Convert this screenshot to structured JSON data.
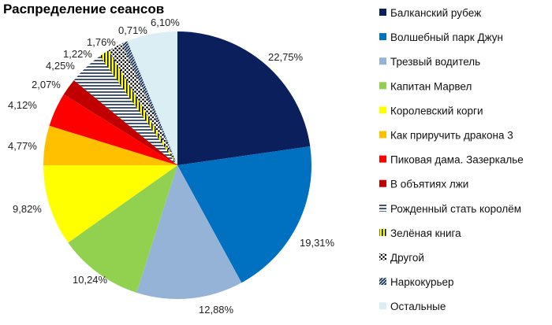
{
  "chart_data": {
    "type": "pie",
    "title": "Распределение сеансов",
    "legend_position": "right",
    "start": "top, clockwise",
    "slices": [
      {
        "name": "Балканский рубеж",
        "value": 22.75,
        "label": "22,75%",
        "color": "#0b1f5c",
        "pattern": "solid"
      },
      {
        "name": "Волшебный парк Джун",
        "value": 19.31,
        "label": "19,31%",
        "color": "#0070c0",
        "pattern": "solid"
      },
      {
        "name": "Трезвый водитель",
        "value": 12.88,
        "label": "12,88%",
        "color": "#95b3d7",
        "pattern": "solid"
      },
      {
        "name": "Капитан Марвел",
        "value": 10.24,
        "label": "10,24%",
        "color": "#92d050",
        "pattern": "solid"
      },
      {
        "name": "Королевский корги",
        "value": 9.82,
        "label": "9,82%",
        "color": "#ffff00",
        "pattern": "solid"
      },
      {
        "name": "Как приручить дракона 3",
        "value": 4.77,
        "label": "4,77%",
        "color": "#ffc000",
        "pattern": "solid"
      },
      {
        "name": "Пиковая дама. Зазеркалье",
        "value": 4.12,
        "label": "4,12%",
        "color": "#ff0000",
        "pattern": "solid"
      },
      {
        "name": "В объятиях лжи",
        "value": 2.07,
        "label": "2,07%",
        "color": "#c00000",
        "pattern": "solid"
      },
      {
        "name": "Рожденный стать королём",
        "value": 4.25,
        "label": "4,25%",
        "color": "#44546a",
        "pattern": "hlines"
      },
      {
        "name": "Зелёная книга",
        "value": 1.22,
        "label": "1,22%",
        "color": "#ffff00",
        "pattern": "vlines"
      },
      {
        "name": "Другой",
        "value": 1.76,
        "label": "1,76%",
        "color": "#000000",
        "pattern": "dots"
      },
      {
        "name": "Наркокурьер",
        "value": 0.71,
        "label": "0,71%",
        "color": "#1f3864",
        "pattern": "diag"
      },
      {
        "name": "Остальные",
        "value": 6.1,
        "label": "6,10%",
        "color": "#dbeef4",
        "pattern": "solid"
      }
    ]
  }
}
